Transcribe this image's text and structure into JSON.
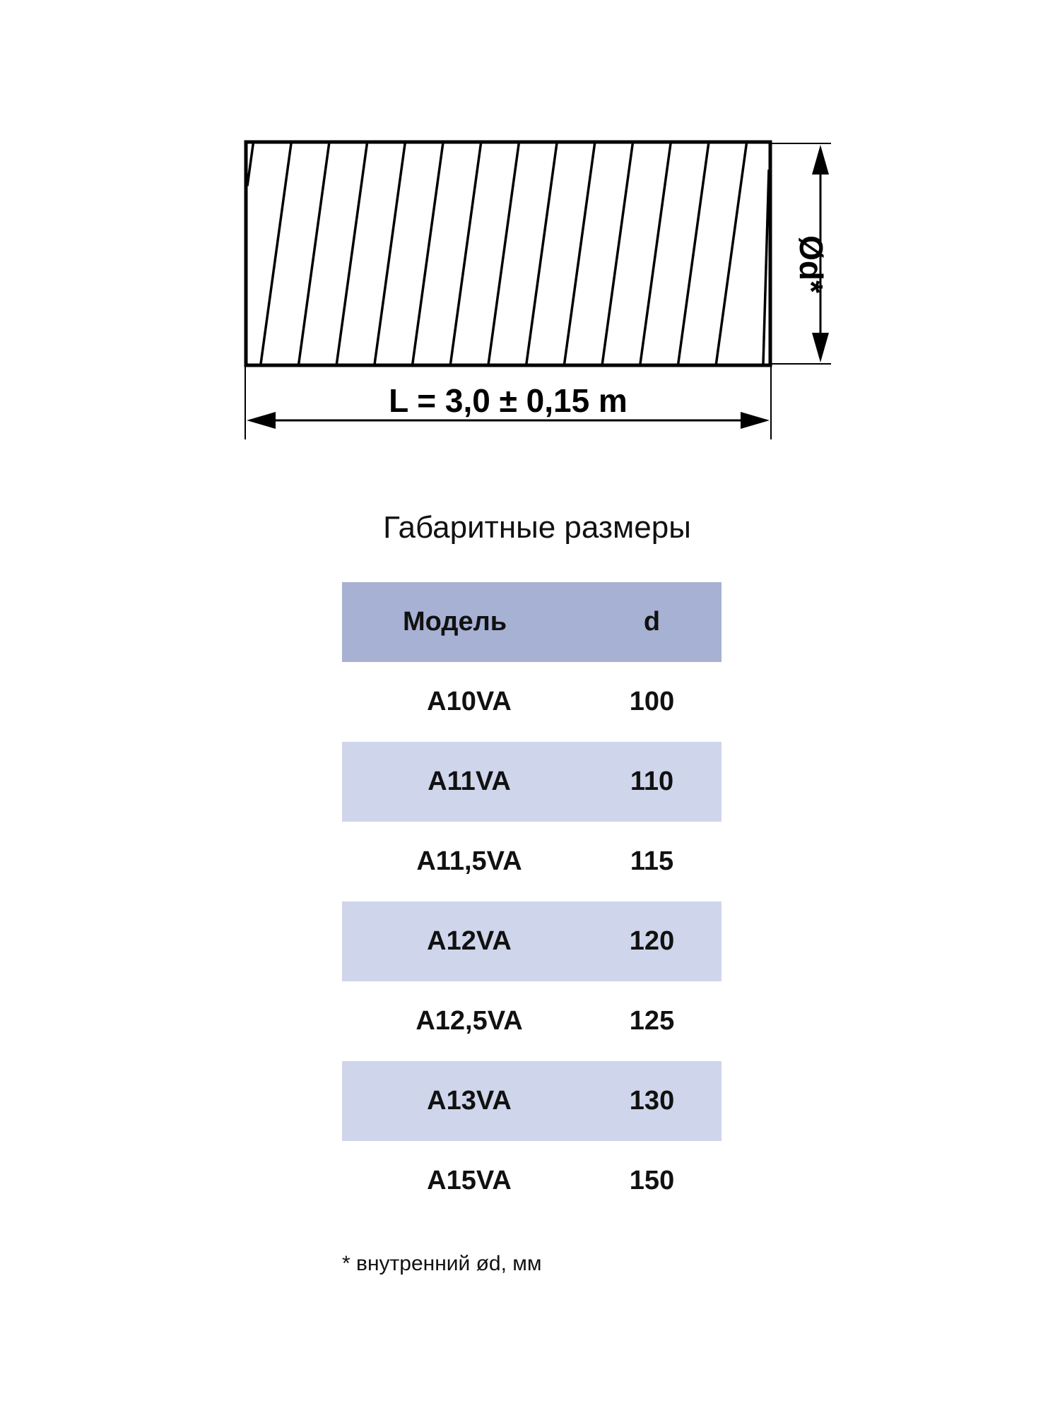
{
  "drawing": {
    "length_label": "L = 3,0 ± 0,15 m",
    "diameter_label": "Ød*"
  },
  "title": "Габаритные размеры",
  "table": {
    "headers": [
      "Модель",
      "d"
    ],
    "rows": [
      {
        "model": "A10VA",
        "d": "100"
      },
      {
        "model": "A11VA",
        "d": "110"
      },
      {
        "model": "A11,5VA",
        "d": "115"
      },
      {
        "model": "A12VA",
        "d": "120"
      },
      {
        "model": "A12,5VA",
        "d": "125"
      },
      {
        "model": "A13VA",
        "d": "130"
      },
      {
        "model": "A15VA",
        "d": "150"
      }
    ],
    "colors": {
      "header": "#a7b1d4",
      "stripe": "#cfd5ea"
    }
  },
  "footnote": "* внутренний ød, мм"
}
